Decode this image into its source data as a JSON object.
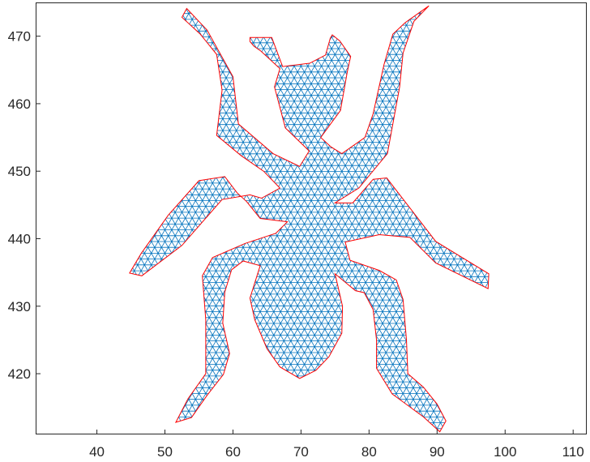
{
  "chart_data": {
    "type": "triangular-mesh",
    "title": "",
    "xlabel": "",
    "ylabel": "",
    "xlim": [
      31,
      112
    ],
    "ylim": [
      411,
      475
    ],
    "x_ticks": [
      40,
      50,
      60,
      70,
      80,
      90,
      100,
      110
    ],
    "y_ticks": [
      420,
      430,
      440,
      450,
      460,
      470
    ],
    "x_tick_labels": [
      "40",
      "50",
      "60",
      "70",
      "80",
      "90",
      "100",
      "110"
    ],
    "y_tick_labels": [
      "420",
      "430",
      "440",
      "450",
      "460",
      "470"
    ],
    "grid": false,
    "legend": "none",
    "boundary": [
      [
        53.2,
        474.1
      ],
      [
        56.2,
        470.9
      ],
      [
        60.0,
        464.0
      ],
      [
        60.8,
        457.0
      ],
      [
        65.9,
        452.6
      ],
      [
        69.8,
        450.7
      ],
      [
        71.2,
        453.0
      ],
      [
        67.7,
        456.4
      ],
      [
        66.1,
        462.5
      ],
      [
        66.9,
        465.2
      ],
      [
        64.1,
        467.8
      ],
      [
        63.1,
        468.5
      ],
      [
        62.5,
        469.2
      ],
      [
        62.5,
        469.8
      ],
      [
        65.7,
        469.8
      ],
      [
        67.3,
        465.5
      ],
      [
        71.3,
        466.0
      ],
      [
        73.6,
        467.2
      ],
      [
        74.3,
        469.7
      ],
      [
        74.6,
        470.2
      ],
      [
        75.7,
        469.3
      ],
      [
        77.3,
        467.0
      ],
      [
        76.8,
        464.7
      ],
      [
        75.8,
        459.0
      ],
      [
        72.9,
        455.0
      ],
      [
        74.4,
        453.6
      ],
      [
        76.0,
        452.6
      ],
      [
        79.4,
        455.0
      ],
      [
        80.6,
        458.5
      ],
      [
        82.2,
        465.8
      ],
      [
        83.5,
        470.3
      ],
      [
        85.3,
        472.0
      ],
      [
        88.8,
        474.5
      ],
      [
        86.6,
        472.2
      ],
      [
        85.0,
        467.5
      ],
      [
        84.5,
        462.5
      ],
      [
        82.7,
        452.6
      ],
      [
        78.5,
        447.5
      ],
      [
        75.0,
        445.3
      ],
      [
        77.6,
        445.3
      ],
      [
        80.6,
        448.8
      ],
      [
        82.6,
        449.0
      ],
      [
        89.8,
        439.6
      ],
      [
        97.6,
        434.8
      ],
      [
        97.5,
        432.6
      ],
      [
        89.8,
        436.4
      ],
      [
        86.0,
        440.2
      ],
      [
        81.5,
        440.6
      ],
      [
        76.5,
        439.5
      ],
      [
        77.2,
        436.8
      ],
      [
        81.5,
        435.3
      ],
      [
        84.0,
        433.9
      ],
      [
        85.0,
        431.0
      ],
      [
        85.5,
        425.0
      ],
      [
        85.7,
        420.0
      ],
      [
        88.0,
        418.0
      ],
      [
        90.0,
        415.5
      ],
      [
        91.3,
        413.0
      ],
      [
        90.4,
        411.4
      ],
      [
        88.0,
        413.6
      ],
      [
        83.4,
        417.0
      ],
      [
        81.1,
        420.8
      ],
      [
        81.1,
        425.0
      ],
      [
        80.6,
        429.5
      ],
      [
        79.3,
        432.0
      ],
      [
        78.0,
        432.3
      ],
      [
        75.0,
        434.8
      ],
      [
        76.1,
        430.0
      ],
      [
        76.0,
        426.0
      ],
      [
        74.1,
        422.5
      ],
      [
        72.2,
        420.5
      ],
      [
        69.8,
        419.3
      ],
      [
        66.9,
        421.0
      ],
      [
        65.0,
        423.7
      ],
      [
        63.2,
        428.0
      ],
      [
        62.5,
        431.2
      ],
      [
        64.0,
        436.0
      ],
      [
        61.5,
        436.7
      ],
      [
        59.8,
        435.4
      ],
      [
        58.8,
        432.1
      ],
      [
        58.5,
        427.5
      ],
      [
        59.5,
        423.0
      ],
      [
        58.6,
        419.9
      ],
      [
        56.2,
        416.8
      ],
      [
        53.9,
        413.5
      ],
      [
        51.6,
        412.8
      ],
      [
        53.4,
        416.3
      ],
      [
        56.0,
        420.0
      ],
      [
        56.0,
        428.0
      ],
      [
        55.5,
        434.5
      ],
      [
        57.0,
        437.2
      ],
      [
        61.8,
        439.3
      ],
      [
        66.3,
        440.8
      ],
      [
        68.0,
        442.5
      ],
      [
        64.0,
        443.0
      ],
      [
        62.0,
        445.5
      ],
      [
        60.6,
        446.8
      ],
      [
        58.8,
        449.2
      ],
      [
        55.0,
        448.6
      ],
      [
        50.5,
        443.5
      ],
      [
        46.5,
        437.8
      ],
      [
        44.8,
        434.9
      ],
      [
        46.6,
        434.5
      ],
      [
        52.5,
        439.0
      ],
      [
        58.4,
        445.8
      ],
      [
        62.5,
        446.5
      ],
      [
        64.2,
        446.0
      ],
      [
        66.9,
        447.5
      ],
      [
        64.5,
        450.0
      ],
      [
        61.2,
        452.3
      ],
      [
        57.6,
        455.3
      ],
      [
        58.4,
        462.0
      ],
      [
        57.6,
        467.3
      ],
      [
        55.2,
        470.3
      ],
      [
        52.5,
        472.8
      ]
    ],
    "approx_mesh_edge_length": 1.0
  },
  "colors": {
    "mesh": "#0072bd",
    "boundary": "#ff0000",
    "axes": "#262626",
    "background": "#ffffff"
  }
}
